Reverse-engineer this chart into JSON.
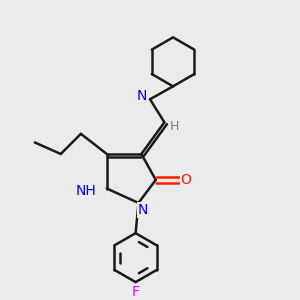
{
  "bg_color": "#ebebeb",
  "bond_color": "#1a1a1a",
  "bond_width": 1.8,
  "atom_colors": {
    "N": "#0000ee",
    "O": "#ff2000",
    "F": "#ee00ee",
    "H": "#4a9090"
  },
  "font_size_atom": 10,
  "font_size_H": 9
}
